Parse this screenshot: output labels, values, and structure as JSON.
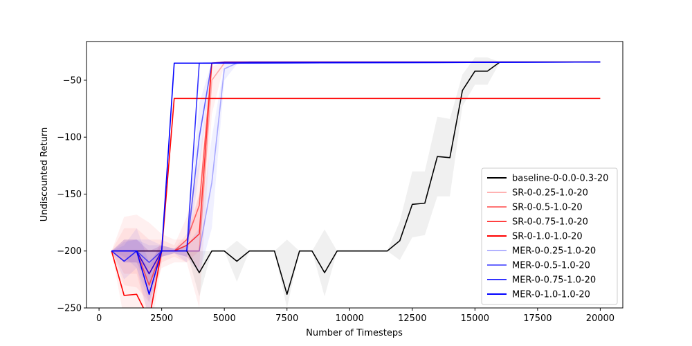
{
  "chart_data": {
    "type": "line",
    "title": "",
    "xlabel": "Number of Timesteps",
    "ylabel": "Undiscounted Return",
    "xlim": [
      -500,
      20900
    ],
    "ylim": [
      -250,
      -16
    ],
    "xticks": [
      0,
      2500,
      5000,
      7500,
      10000,
      12500,
      15000,
      17500,
      20000
    ],
    "xtick_labels": [
      "0",
      "2500",
      "5000",
      "7500",
      "10000",
      "12500",
      "15000",
      "17500",
      "20000"
    ],
    "yticks": [
      -250,
      -200,
      -150,
      -100,
      -50
    ],
    "ytick_labels": [
      "−250",
      "−200",
      "−150",
      "−100",
      "−50"
    ],
    "grid": false,
    "legend_position": "lower-right",
    "series": [
      {
        "name": "baseline-0-0.0-0.3-20",
        "color": "#000000",
        "opacity": 1.0,
        "x": [
          500,
          1000,
          1500,
          2000,
          2500,
          3000,
          3500,
          4000,
          4500,
          5000,
          5500,
          6000,
          6500,
          7000,
          7500,
          8000,
          8500,
          9000,
          9500,
          10000,
          10500,
          11000,
          11500,
          12000,
          12500,
          13000,
          13500,
          14000,
          14500,
          15000,
          15500,
          16000,
          20000
        ],
        "y": [
          -200,
          -200,
          -200,
          -200,
          -200,
          -200,
          -200,
          -219,
          -200,
          -200,
          -209,
          -200,
          -200,
          -200,
          -238,
          -200,
          -200,
          -219,
          -200,
          -200,
          -200,
          -200,
          -200,
          -191,
          -159,
          -158,
          -117,
          -118,
          -59,
          -42,
          -42,
          -34,
          -34
        ],
        "upper": [
          -200,
          -200,
          -200,
          -200,
          -200,
          -200,
          -200,
          -200,
          -200,
          -200,
          -191,
          -200,
          -200,
          -200,
          -190,
          -200,
          -200,
          -181,
          -200,
          -200,
          -200,
          -200,
          -200,
          -174,
          -130,
          -130,
          -82,
          -84,
          -45,
          -30,
          -30,
          -34,
          -34
        ],
        "lower": [
          -200,
          -200,
          -200,
          -200,
          -200,
          -200,
          -200,
          -240,
          -200,
          -200,
          -227,
          -200,
          -200,
          -200,
          -250,
          -200,
          -200,
          -240,
          -200,
          -200,
          -200,
          -200,
          -200,
          -208,
          -188,
          -186,
          -152,
          -152,
          -73,
          -54,
          -54,
          -34,
          -34
        ]
      },
      {
        "name": "SR-0-0.25-1.0-20",
        "color": "#ff0000",
        "opacity": 0.3,
        "x": [
          500,
          1000,
          1500,
          2000,
          2500,
          3000,
          3500,
          4000,
          4500,
          5000,
          5500,
          6000,
          20000
        ],
        "y": [
          -200,
          -200,
          -200,
          -200,
          -200,
          -200,
          -200,
          -200,
          -50,
          -35,
          -35,
          -34,
          -34
        ],
        "upper": [
          -200,
          -170,
          -168,
          -175,
          -185,
          -190,
          -190,
          -150,
          -38,
          -34,
          -34,
          -34,
          -34
        ],
        "lower": [
          -200,
          -230,
          -232,
          -245,
          -215,
          -210,
          -210,
          -250,
          -80,
          -36,
          -36,
          -34,
          -34
        ]
      },
      {
        "name": "SR-0-0.5-1.0-20",
        "color": "#ff0000",
        "opacity": 0.55,
        "x": [
          500,
          1000,
          1500,
          2000,
          2500,
          3000,
          3500,
          4000,
          4500,
          5000,
          20000
        ],
        "y": [
          -200,
          -200,
          -200,
          -230,
          -200,
          -200,
          -190,
          -160,
          -35,
          -34,
          -34
        ],
        "upper": [
          -200,
          -180,
          -180,
          -190,
          -190,
          -195,
          -170,
          -120,
          -34,
          -34,
          -34
        ],
        "lower": [
          -200,
          -220,
          -220,
          -260,
          -210,
          -205,
          -210,
          -200,
          -36,
          -34,
          -34
        ]
      },
      {
        "name": "SR-0-0.75-1.0-20",
        "color": "#ff0000",
        "opacity": 0.75,
        "x": [
          500,
          1000,
          1500,
          2000,
          2500,
          3000,
          3500,
          4000,
          4500,
          5000,
          20000
        ],
        "y": [
          -200,
          -200,
          -200,
          -220,
          -200,
          -200,
          -195,
          -185,
          -35,
          -34,
          -34
        ],
        "upper": [
          -200,
          -190,
          -190,
          -200,
          -195,
          -198,
          -185,
          -150,
          -34,
          -34,
          -34
        ],
        "lower": [
          -200,
          -210,
          -210,
          -240,
          -205,
          -202,
          -205,
          -215,
          -36,
          -34,
          -34
        ]
      },
      {
        "name": "SR-0-1.0-1.0-20",
        "color": "#ff0000",
        "opacity": 1.0,
        "x": [
          500,
          1000,
          1500,
          2000,
          2500,
          3000,
          20000
        ],
        "y": [
          -200,
          -239,
          -238,
          -260,
          -200,
          -66,
          -66
        ],
        "upper": [
          -200,
          -200,
          -200,
          -215,
          -190,
          -66,
          -66
        ],
        "lower": [
          -200,
          -260,
          -260,
          -280,
          -210,
          -66,
          -66
        ]
      },
      {
        "name": "MER-0-0.25-1.0-20",
        "color": "#0000ff",
        "opacity": 0.3,
        "x": [
          500,
          1000,
          1500,
          2000,
          2500,
          3000,
          3500,
          4000,
          4500,
          5000,
          5500,
          6000,
          20000
        ],
        "y": [
          -200,
          -200,
          -200,
          -200,
          -200,
          -200,
          -200,
          -200,
          -140,
          -40,
          -35,
          -34,
          -34
        ],
        "upper": [
          -200,
          -190,
          -190,
          -190,
          -195,
          -198,
          -195,
          -180,
          -100,
          -36,
          -34,
          -34,
          -34
        ],
        "lower": [
          -200,
          -210,
          -210,
          -215,
          -205,
          -202,
          -205,
          -220,
          -180,
          -50,
          -36,
          -34,
          -34
        ]
      },
      {
        "name": "MER-0-0.5-1.0-20",
        "color": "#0000ff",
        "opacity": 0.6,
        "x": [
          500,
          1000,
          1500,
          2000,
          2500,
          3000,
          3500,
          4000,
          4500,
          5000,
          20000
        ],
        "y": [
          -200,
          -200,
          -200,
          -210,
          -200,
          -200,
          -200,
          -100,
          -35,
          -34,
          -34
        ],
        "upper": [
          -200,
          -190,
          -190,
          -195,
          -195,
          -198,
          -190,
          -70,
          -34,
          -34,
          -34
        ],
        "lower": [
          -200,
          -210,
          -210,
          -230,
          -205,
          -202,
          -210,
          -130,
          -36,
          -34,
          -34
        ]
      },
      {
        "name": "MER-0-0.75-1.0-20",
        "color": "#0000ff",
        "opacity": 0.8,
        "x": [
          500,
          1000,
          1500,
          2000,
          2500,
          3000,
          3500,
          4000,
          20000
        ],
        "y": [
          -200,
          -209,
          -200,
          -220,
          -200,
          -200,
          -200,
          -35,
          -34
        ],
        "upper": [
          -200,
          -192,
          -190,
          -200,
          -195,
          -198,
          -195,
          -34,
          -34
        ],
        "lower": [
          -200,
          -225,
          -215,
          -245,
          -205,
          -202,
          -205,
          -36,
          -34
        ]
      },
      {
        "name": "MER-0-1.0-1.0-20",
        "color": "#0000ff",
        "opacity": 1.0,
        "x": [
          500,
          1000,
          1500,
          2000,
          2500,
          3000,
          3500,
          4000,
          20000
        ],
        "y": [
          -200,
          -200,
          -200,
          -238,
          -200,
          -35,
          -35,
          -35,
          -34
        ],
        "upper": [
          -200,
          -195,
          -180,
          -210,
          -195,
          -35,
          -35,
          -35,
          -34
        ],
        "lower": [
          -200,
          -205,
          -215,
          -260,
          -205,
          -35,
          -35,
          -35,
          -34
        ]
      }
    ]
  }
}
